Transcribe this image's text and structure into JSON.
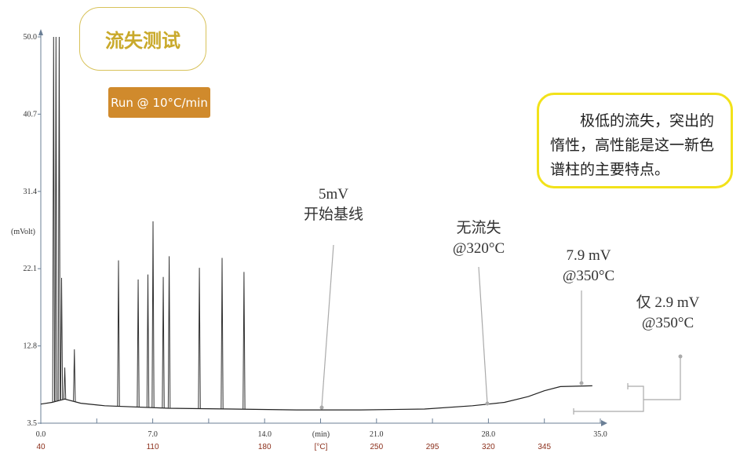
{
  "title": "流失测试",
  "run_badge": "Run @ 10°C/min",
  "note": "极低的流失，突出的惰性，高性能是这一新色谱柱的主要特点。",
  "annotations": [
    {
      "line1": "5mV",
      "line2": "开始基线"
    },
    {
      "line1": "无流失",
      "line2": "@320°C"
    },
    {
      "line1": "7.9 mV",
      "line2": "@350°C"
    },
    {
      "line1": "仅 2.9 mV",
      "line2": "@350°C"
    }
  ],
  "chart_data": {
    "type": "line",
    "title": "",
    "xlabel": "(min)",
    "ylabel": "(mVolt)",
    "xlim": [
      0,
      35
    ],
    "ylim": [
      3.5,
      50.0
    ],
    "x_ticks": [
      "0.0",
      "7.0",
      "14.0",
      "21.0",
      "28.0",
      "35.0"
    ],
    "y_ticks": [
      "3.5",
      "12.8",
      "22.1",
      "31.4",
      "40.7",
      "50.0"
    ],
    "temp_label": "[°C]",
    "temp_ticks": [
      {
        "min": 0,
        "label": "40"
      },
      {
        "min": 7,
        "label": "110"
      },
      {
        "min": 14,
        "label": "180"
      },
      {
        "min": 21,
        "label": "250"
      },
      {
        "min": 24.5,
        "label": "295"
      },
      {
        "min": 28,
        "label": "320"
      },
      {
        "min": 31.5,
        "label": "345"
      }
    ],
    "baseline": [
      [
        0,
        5.8
      ],
      [
        0.7,
        6.0
      ],
      [
        1.5,
        6.4
      ],
      [
        2.5,
        5.9
      ],
      [
        4,
        5.6
      ],
      [
        8,
        5.3
      ],
      [
        12,
        5.2
      ],
      [
        16,
        5.1
      ],
      [
        20,
        5.1
      ],
      [
        24,
        5.2
      ],
      [
        27,
        5.6
      ],
      [
        29,
        6.0
      ],
      [
        30.5,
        6.7
      ],
      [
        31.5,
        7.4
      ],
      [
        32.5,
        7.9
      ],
      [
        35.5,
        8.0
      ]
    ],
    "peaks": [
      [
        0.8,
        50.0
      ],
      [
        0.95,
        50.0
      ],
      [
        1.15,
        50.0
      ],
      [
        1.3,
        21.0
      ],
      [
        1.5,
        10.2
      ],
      [
        2.1,
        12.4
      ],
      [
        4.86,
        23.1
      ],
      [
        6.09,
        20.8
      ],
      [
        6.7,
        21.4
      ],
      [
        7.02,
        27.8
      ],
      [
        7.66,
        21.1
      ],
      [
        8.03,
        23.6
      ],
      [
        9.92,
        22.2
      ],
      [
        11.34,
        23.4
      ],
      [
        12.71,
        21.7
      ]
    ],
    "grid": false
  }
}
